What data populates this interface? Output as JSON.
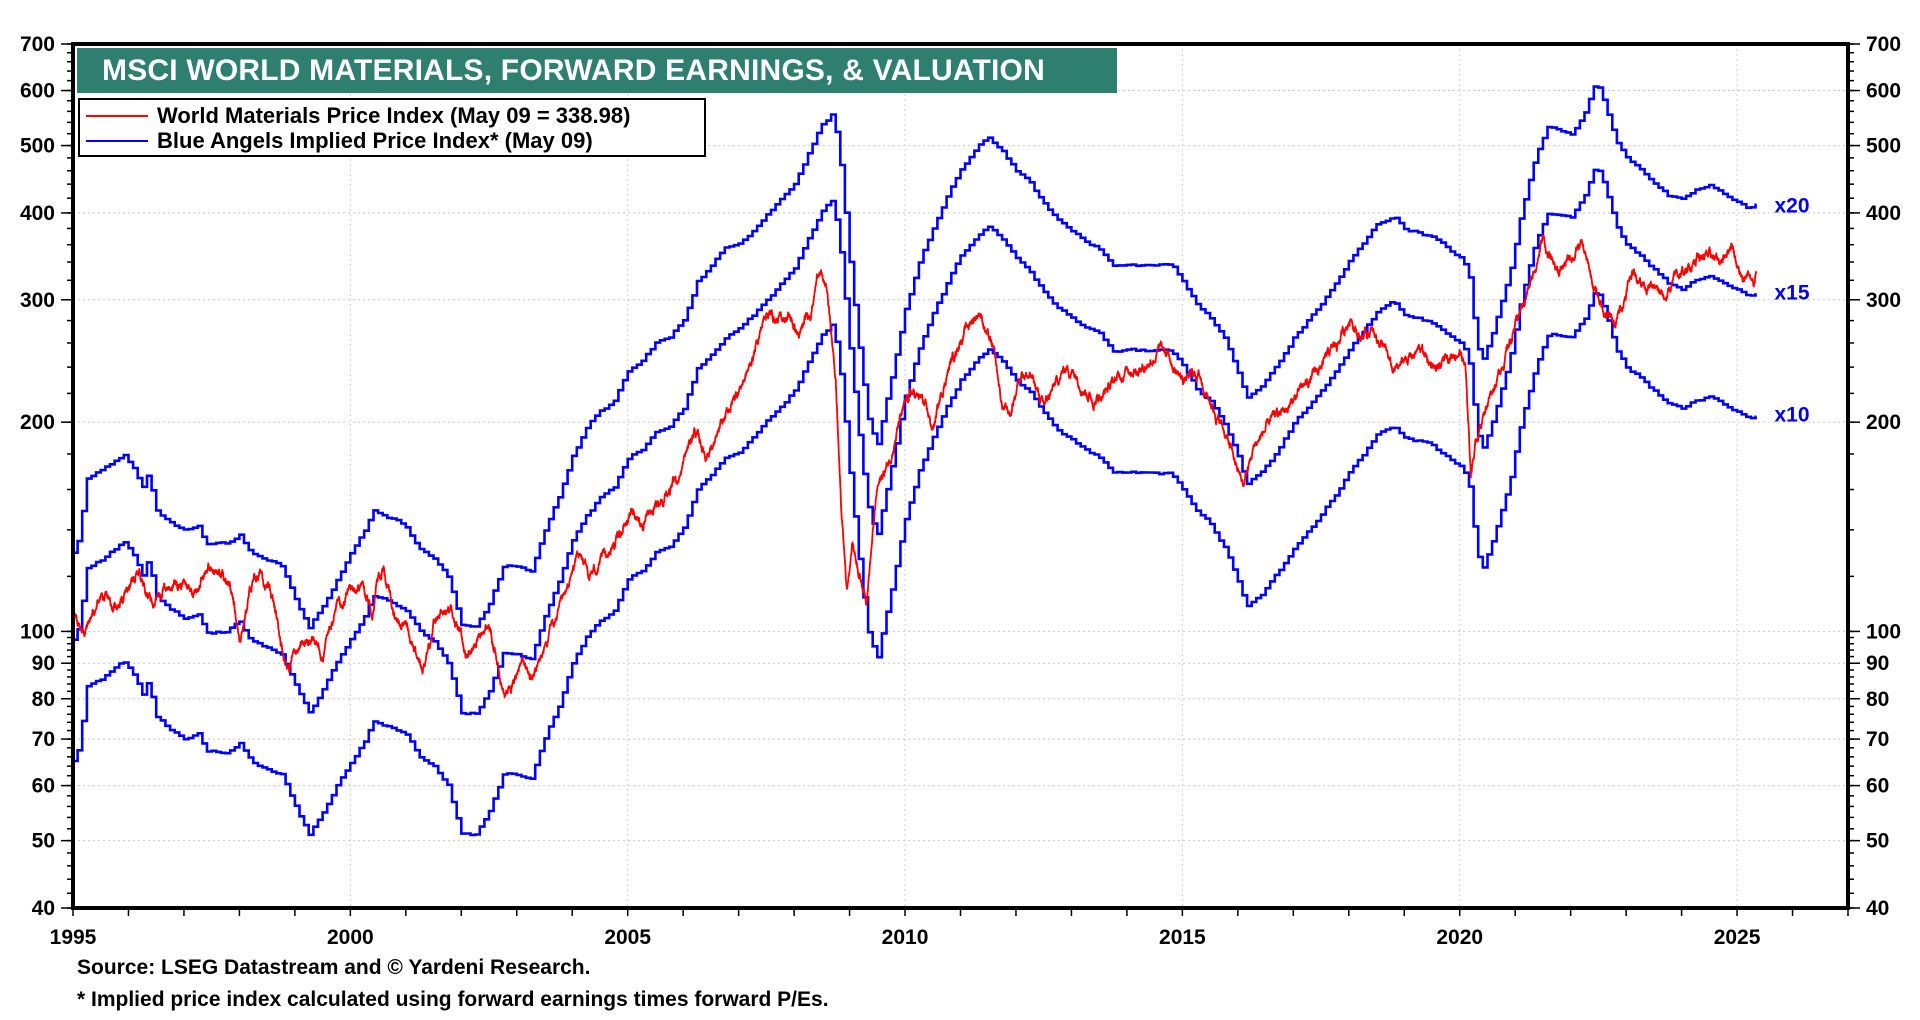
{
  "chart_data": {
    "type": "line",
    "title": "MSCI WORLD MATERIALS, FORWARD EARNINGS, & VALUATION",
    "xlabel": "",
    "ylabel": "",
    "y_scale": "log",
    "ylim": [
      40,
      700
    ],
    "xlim": [
      1995,
      2027
    ],
    "grid": true,
    "legend_position": "top-left",
    "x_ticks": [
      1995,
      2000,
      2005,
      2010,
      2015,
      2020,
      2025
    ],
    "x_tick_labels": [
      "1995",
      "2000",
      "2005",
      "2010",
      "2015",
      "2020",
      "2025"
    ],
    "y_ticks": [
      40,
      50,
      60,
      70,
      80,
      90,
      100,
      200,
      300,
      400,
      500,
      600,
      700
    ],
    "y_tick_labels": [
      "40",
      "50",
      "60",
      "70",
      "80",
      "90",
      "100",
      "200",
      "300",
      "400",
      "500",
      "600",
      "700"
    ],
    "legend": [
      {
        "label": "World Materials Price Index (May 09 = 338.98)",
        "color": "#ff0000"
      },
      {
        "label": "Blue Angels Implied Price Index* (May 09)",
        "color": "#0000ff"
      }
    ],
    "series": [
      {
        "name": "World Materials Price Index",
        "color": "#ff0000",
        "style": "noisy",
        "last_value": 338.98,
        "x": [
          1995.0,
          1995.2,
          1995.5,
          1995.75,
          1996.0,
          1996.2,
          1996.4,
          1996.6,
          1996.9,
          1997.2,
          1997.5,
          1997.7,
          1997.9,
          1998.0,
          1998.2,
          1998.4,
          1998.6,
          1998.8,
          1998.9,
          1999.0,
          1999.3,
          1999.5,
          1999.8,
          2000.0,
          2000.2,
          2000.4,
          2000.5,
          2000.6,
          2000.8,
          2001.0,
          2001.3,
          2001.5,
          2001.8,
          2002.0,
          2002.1,
          2002.3,
          2002.5,
          2002.7,
          2002.9,
          2003.1,
          2003.3,
          2003.6,
          2003.9,
          2004.1,
          2004.3,
          2004.6,
          2004.9,
          2005.1,
          2005.3,
          2005.6,
          2005.9,
          2006.2,
          2006.4,
          2006.6,
          2006.9,
          2007.2,
          2007.5,
          2007.7,
          2007.9,
          2008.1,
          2008.3,
          2008.45,
          2008.6,
          2008.75,
          2008.85,
          2008.95,
          2009.05,
          2009.2,
          2009.3,
          2009.5,
          2009.7,
          2009.9,
          2010.1,
          2010.3,
          2010.5,
          2010.75,
          2011.0,
          2011.2,
          2011.35,
          2011.6,
          2011.75,
          2011.9,
          2012.1,
          2012.3,
          2012.5,
          2012.7,
          2012.9,
          2013.1,
          2013.4,
          2013.7,
          2014.0,
          2014.3,
          2014.6,
          2014.8,
          2015.0,
          2015.3,
          2015.5,
          2015.75,
          2016.0,
          2016.1,
          2016.3,
          2016.6,
          2016.9,
          2017.2,
          2017.5,
          2017.8,
          2018.05,
          2018.2,
          2018.4,
          2018.6,
          2018.8,
          2019.0,
          2019.3,
          2019.6,
          2019.8,
          2020.0,
          2020.1,
          2020.2,
          2020.3,
          2020.5,
          2020.7,
          2020.9,
          2021.1,
          2021.3,
          2021.5,
          2021.6,
          2021.8,
          2022.0,
          2022.2,
          2022.4,
          2022.6,
          2022.8,
          2022.95,
          2023.1,
          2023.3,
          2023.5,
          2023.7,
          2023.9,
          2024.1,
          2024.3,
          2024.5,
          2024.7,
          2024.9,
          2025.0,
          2025.1,
          2025.2,
          2025.3,
          2025.35
        ],
        "values": [
          105,
          100,
          112,
          108,
          115,
          122,
          112,
          115,
          118,
          115,
          125,
          118,
          110,
          98,
          115,
          122,
          110,
          93,
          88,
          95,
          97,
          93,
          112,
          115,
          118,
          108,
          120,
          122,
          105,
          103,
          88,
          102,
          108,
          100,
          92,
          98,
          102,
          85,
          83,
          90,
          85,
          100,
          112,
          130,
          120,
          128,
          140,
          150,
          142,
          155,
          165,
          195,
          180,
          188,
          215,
          240,
          290,
          280,
          285,
          265,
          290,
          335,
          305,
          230,
          150,
          115,
          135,
          120,
          112,
          160,
          175,
          200,
          220,
          215,
          195,
          235,
          265,
          280,
          290,
          250,
          210,
          205,
          240,
          230,
          210,
          225,
          240,
          235,
          215,
          225,
          240,
          240,
          255,
          245,
          230,
          235,
          215,
          195,
          170,
          162,
          185,
          200,
          210,
          225,
          240,
          260,
          285,
          265,
          270,
          260,
          235,
          245,
          255,
          235,
          250,
          255,
          240,
          170,
          190,
          215,
          235,
          260,
          290,
          320,
          370,
          345,
          330,
          345,
          360,
          315,
          290,
          275,
          300,
          330,
          320,
          310,
          300,
          325,
          330,
          350,
          345,
          340,
          365,
          340,
          315,
          330,
          310,
          338.98
        ]
      },
      {
        "name": "Blue Angels Implied Price Index x10",
        "multiplier": 10,
        "color": "#0000ff",
        "style": "step",
        "end_label": "x10",
        "x": [
          1995.0,
          1995.1,
          1995.25,
          1995.5,
          1995.75,
          1995.9,
          1996.1,
          1996.25,
          1996.35,
          1996.5,
          1996.75,
          1997.0,
          1997.25,
          1997.4,
          1997.75,
          1998.0,
          1998.2,
          1998.5,
          1998.75,
          1999.0,
          1999.25,
          1999.5,
          1999.75,
          2000.0,
          2000.25,
          2000.4,
          2000.75,
          2001.0,
          2001.25,
          2001.5,
          2001.75,
          2002.0,
          2002.25,
          2002.5,
          2002.75,
          2003.0,
          2003.25,
          2003.5,
          2003.75,
          2004.0,
          2004.25,
          2004.5,
          2004.75,
          2005.0,
          2005.25,
          2005.5,
          2005.75,
          2006.0,
          2006.25,
          2006.5,
          2006.75,
          2007.0,
          2007.25,
          2007.5,
          2007.75,
          2008.0,
          2008.25,
          2008.5,
          2008.7,
          2008.85,
          2009.0,
          2009.2,
          2009.35,
          2009.5,
          2009.7,
          2010.0,
          2010.25,
          2010.5,
          2010.75,
          2011.0,
          2011.3,
          2011.5,
          2011.75,
          2012.0,
          2012.25,
          2012.5,
          2012.75,
          2013.0,
          2013.5,
          2013.75,
          2014.0,
          2014.5,
          2014.8,
          2015.0,
          2015.25,
          2015.5,
          2015.75,
          2016.0,
          2016.15,
          2016.4,
          2016.75,
          2017.0,
          2017.5,
          2017.75,
          2018.0,
          2018.25,
          2018.5,
          2018.8,
          2019.0,
          2019.25,
          2019.5,
          2019.75,
          2020.0,
          2020.15,
          2020.3,
          2020.4,
          2020.6,
          2020.9,
          2021.1,
          2021.35,
          2021.6,
          2021.75,
          2022.0,
          2022.25,
          2022.45,
          2022.6,
          2022.8,
          2023.0,
          2023.25,
          2023.5,
          2023.75,
          2024.0,
          2024.25,
          2024.5,
          2024.75,
          2025.0,
          2025.2,
          2025.35
        ],
        "values": [
          65,
          68,
          83,
          85,
          88,
          90,
          86,
          81,
          85,
          75,
          72,
          70,
          71,
          67,
          67,
          69,
          65,
          63,
          62,
          56,
          51,
          55,
          60,
          65,
          70,
          75,
          73,
          71,
          66,
          64,
          60,
          51,
          51,
          55,
          62,
          62,
          61,
          70,
          78,
          90,
          98,
          104,
          107,
          118,
          122,
          130,
          132,
          140,
          160,
          168,
          178,
          182,
          190,
          200,
          210,
          222,
          245,
          270,
          280,
          230,
          170,
          120,
          98,
          92,
          110,
          145,
          170,
          190,
          210,
          230,
          248,
          255,
          245,
          230,
          220,
          205,
          195,
          188,
          178,
          168,
          168,
          168,
          168,
          160,
          148,
          142,
          132,
          118,
          108,
          112,
          122,
          132,
          148,
          158,
          170,
          180,
          192,
          198,
          190,
          188,
          185,
          178,
          172,
          165,
          130,
          122,
          135,
          165,
          200,
          240,
          268,
          265,
          262,
          280,
          310,
          290,
          255,
          240,
          232,
          222,
          212,
          208,
          215,
          218,
          212,
          208,
          203,
          205
        ]
      },
      {
        "name": "Blue Angels Implied Price Index x15",
        "multiplier": 15,
        "derived_from": "x10",
        "color": "#0000ff",
        "style": "step",
        "end_label": "x15"
      },
      {
        "name": "Blue Angels Implied Price Index x20",
        "multiplier": 20,
        "derived_from": "x10",
        "color": "#0000ff",
        "style": "step",
        "end_label": "x20"
      }
    ]
  },
  "footer": {
    "source": "Source: LSEG Datastream and © Yardeni Research.",
    "note": "* Implied price index calculated using forward earnings times forward P/Es."
  }
}
